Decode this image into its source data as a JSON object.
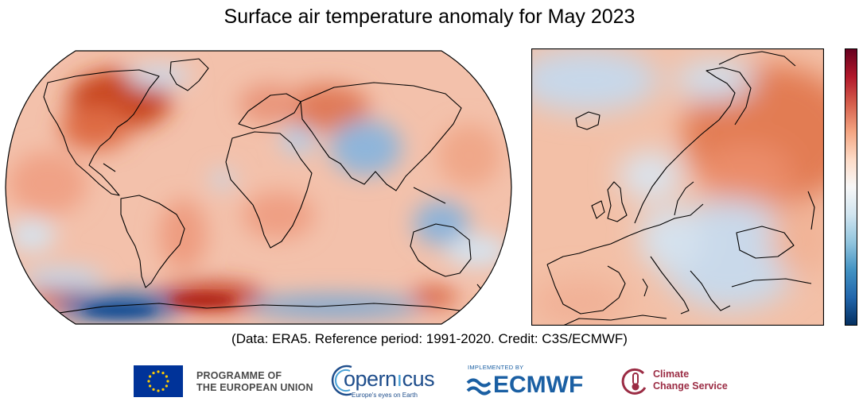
{
  "figure": {
    "title": "Surface air temperature anomaly for May 2023",
    "credit_line": "(Data: ERA5.  Reference period: 1991-2020.  Credit: C3S/ECMWF)"
  },
  "maps": {
    "world": {
      "view": "global",
      "projection": "robinson"
    },
    "europe": {
      "view": "europe-regional"
    }
  },
  "colorbar": {
    "orientation": "vertical",
    "colors": [
      "#053061",
      "#2166ac",
      "#4393c3",
      "#92c5de",
      "#d1e5f0",
      "#f7f7f7",
      "#fddbc7",
      "#f4a582",
      "#d6604d",
      "#b2182b",
      "#67001f"
    ]
  },
  "logos": {
    "eu": {
      "line1": "PROGRAMME OF",
      "line2": "THE EUROPEAN UNION"
    },
    "copernicus": {
      "word_left": "opern",
      "word_right": "cus",
      "tagline": "Europe's eyes on Earth"
    },
    "ecmwf": {
      "implemented_by": "IMPLEMENTED BY",
      "word": "ECMWF"
    },
    "c3s": {
      "line1": "Climate",
      "line2": "Change Service"
    }
  },
  "colors": {
    "warm": "#e9825e",
    "cool": "#b9cfe6",
    "copernicus_blue": "#1f4e8c",
    "ecmwf_blue": "#1a5fa3",
    "c3s_red": "#9b2c44",
    "eu_blue": "#003399",
    "eu_star": "#ffcc00"
  }
}
